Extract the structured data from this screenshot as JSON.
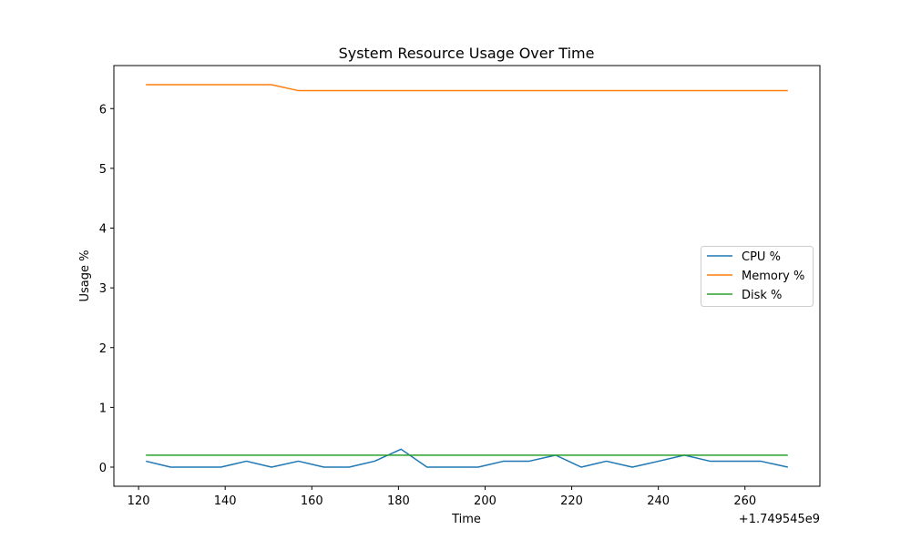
{
  "chart_data": {
    "type": "line",
    "title": "System Resource Usage Over Time",
    "xlabel": "Time",
    "ylabel": "Usage %",
    "x_offset_label": "+1.749545e9",
    "x": [
      121.7,
      127.4,
      133.2,
      139.0,
      144.9,
      150.7,
      156.9,
      162.8,
      168.6,
      174.5,
      180.6,
      186.6,
      192.5,
      198.4,
      204.3,
      210.2,
      216.3,
      222.2,
      228.0,
      234.0,
      240.1,
      246.0,
      251.9,
      257.8,
      263.6,
      269.9
    ],
    "series": [
      {
        "name": "CPU %",
        "color": "#1f77b4",
        "values": [
          0.1,
          0.0,
          0.0,
          0.0,
          0.1,
          0.0,
          0.1,
          0.0,
          0.0,
          0.1,
          0.3,
          0.0,
          0.0,
          0.0,
          0.1,
          0.1,
          0.2,
          0.0,
          0.1,
          0.0,
          0.1,
          0.2,
          0.1,
          0.1,
          0.1,
          0.0
        ]
      },
      {
        "name": "Memory %",
        "color": "#ff7f0e",
        "values": [
          6.4,
          6.4,
          6.4,
          6.4,
          6.4,
          6.4,
          6.3,
          6.3,
          6.3,
          6.3,
          6.3,
          6.3,
          6.3,
          6.3,
          6.3,
          6.3,
          6.3,
          6.3,
          6.3,
          6.3,
          6.3,
          6.3,
          6.3,
          6.3,
          6.3,
          6.3
        ]
      },
      {
        "name": "Disk %",
        "color": "#2ca02c",
        "values": [
          0.2,
          0.2,
          0.2,
          0.2,
          0.2,
          0.2,
          0.2,
          0.2,
          0.2,
          0.2,
          0.2,
          0.2,
          0.2,
          0.2,
          0.2,
          0.2,
          0.2,
          0.2,
          0.2,
          0.2,
          0.2,
          0.2,
          0.2,
          0.2,
          0.2,
          0.2
        ]
      }
    ],
    "xlim": [
      114.3,
      277.3
    ],
    "ylim": [
      -0.32,
      6.72
    ],
    "xticks": [
      120,
      140,
      160,
      180,
      200,
      220,
      240,
      260
    ],
    "yticks": [
      0,
      1,
      2,
      3,
      4,
      5,
      6
    ],
    "grid": false,
    "legend_position": "center-right"
  }
}
